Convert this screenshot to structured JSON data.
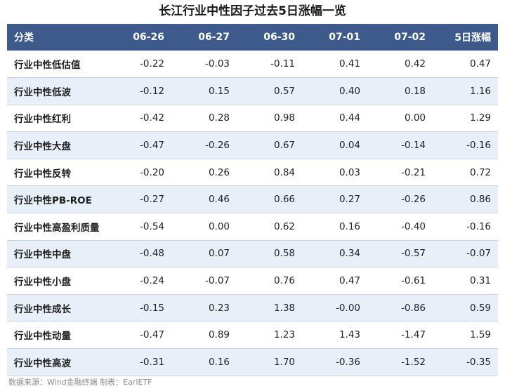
{
  "title": "长江行业中性因子过去5日涨幅一览",
  "table": {
    "headers": [
      "分类",
      "06-26",
      "06-27",
      "06-30",
      "07-01",
      "07-02",
      "5日涨幅"
    ],
    "rows": [
      [
        "行业中性低估值",
        "-0.22",
        "-0.03",
        "-0.11",
        "0.41",
        "0.42",
        "0.47"
      ],
      [
        "行业中性低波",
        "-0.12",
        "0.15",
        "0.57",
        "0.40",
        "0.18",
        "1.16"
      ],
      [
        "行业中性红利",
        "-0.42",
        "0.28",
        "0.98",
        "0.44",
        "0.00",
        "1.29"
      ],
      [
        "行业中性大盘",
        "-0.47",
        "-0.26",
        "0.67",
        "0.04",
        "-0.14",
        "-0.16"
      ],
      [
        "行业中性反转",
        "-0.20",
        "0.26",
        "0.84",
        "0.03",
        "-0.21",
        "0.72"
      ],
      [
        "行业中性PB-ROE",
        "-0.27",
        "0.46",
        "0.66",
        "0.27",
        "-0.26",
        "0.86"
      ],
      [
        "行业中性高盈利质量",
        "-0.54",
        "0.00",
        "0.62",
        "0.16",
        "-0.40",
        "-0.16"
      ],
      [
        "行业中性中盘",
        "-0.48",
        "0.07",
        "0.58",
        "0.34",
        "-0.57",
        "-0.07"
      ],
      [
        "行业中性小盘",
        "-0.24",
        "-0.07",
        "0.76",
        "0.47",
        "-0.61",
        "0.31"
      ],
      [
        "行业中性成长",
        "-0.15",
        "0.23",
        "1.38",
        "-0.00",
        "-0.86",
        "0.59"
      ],
      [
        "行业中性动量",
        "-0.47",
        "0.89",
        "1.23",
        "1.43",
        "-1.47",
        "1.59"
      ],
      [
        "行业中性高波",
        "-0.31",
        "0.16",
        "1.70",
        "-0.36",
        "-1.52",
        "-0.35"
      ]
    ]
  },
  "source": "数据来源：Wind金融终端 制表：EarlETF",
  "colors": {
    "header_bg": "#3e5a8c",
    "alt_row_bg": "#e8eff8"
  }
}
